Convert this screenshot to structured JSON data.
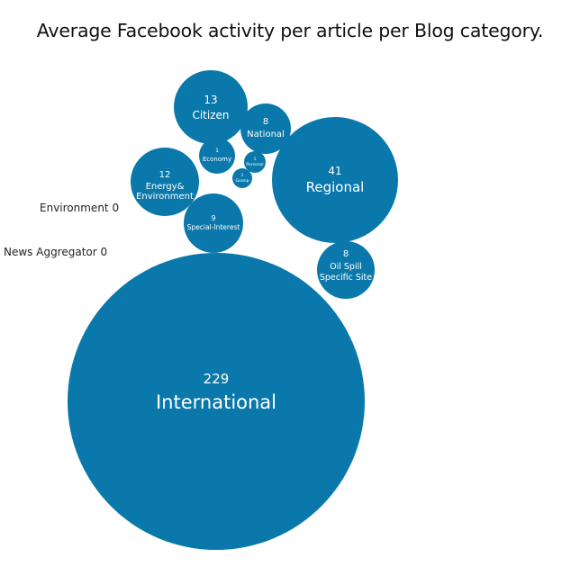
{
  "chart_data": {
    "type": "bubble",
    "title": "Average Facebook activity per article per Blog category.",
    "color": "#0a78aa",
    "label_color": "#ffffff",
    "categories": [
      {
        "name": "International",
        "value": 229
      },
      {
        "name": "Regional",
        "value": 41
      },
      {
        "name": "Citizen",
        "value": 13
      },
      {
        "name": "Energy& Environment",
        "value": 12
      },
      {
        "name": "Special-Interest",
        "value": 9
      },
      {
        "name": "National",
        "value": 8
      },
      {
        "name": "Oil Spill Specific Site",
        "value": 8
      },
      {
        "name": "Economy",
        "value": 1
      },
      {
        "name": "Personal",
        "value": 1
      },
      {
        "name": "Gossip",
        "value": 1
      },
      {
        "name": "Environment",
        "value": 0
      },
      {
        "name": "News Aggregator",
        "value": 0
      }
    ]
  },
  "zero_labels": {
    "environment": "Environment 0",
    "news_aggregator": "News Aggregator 0"
  }
}
